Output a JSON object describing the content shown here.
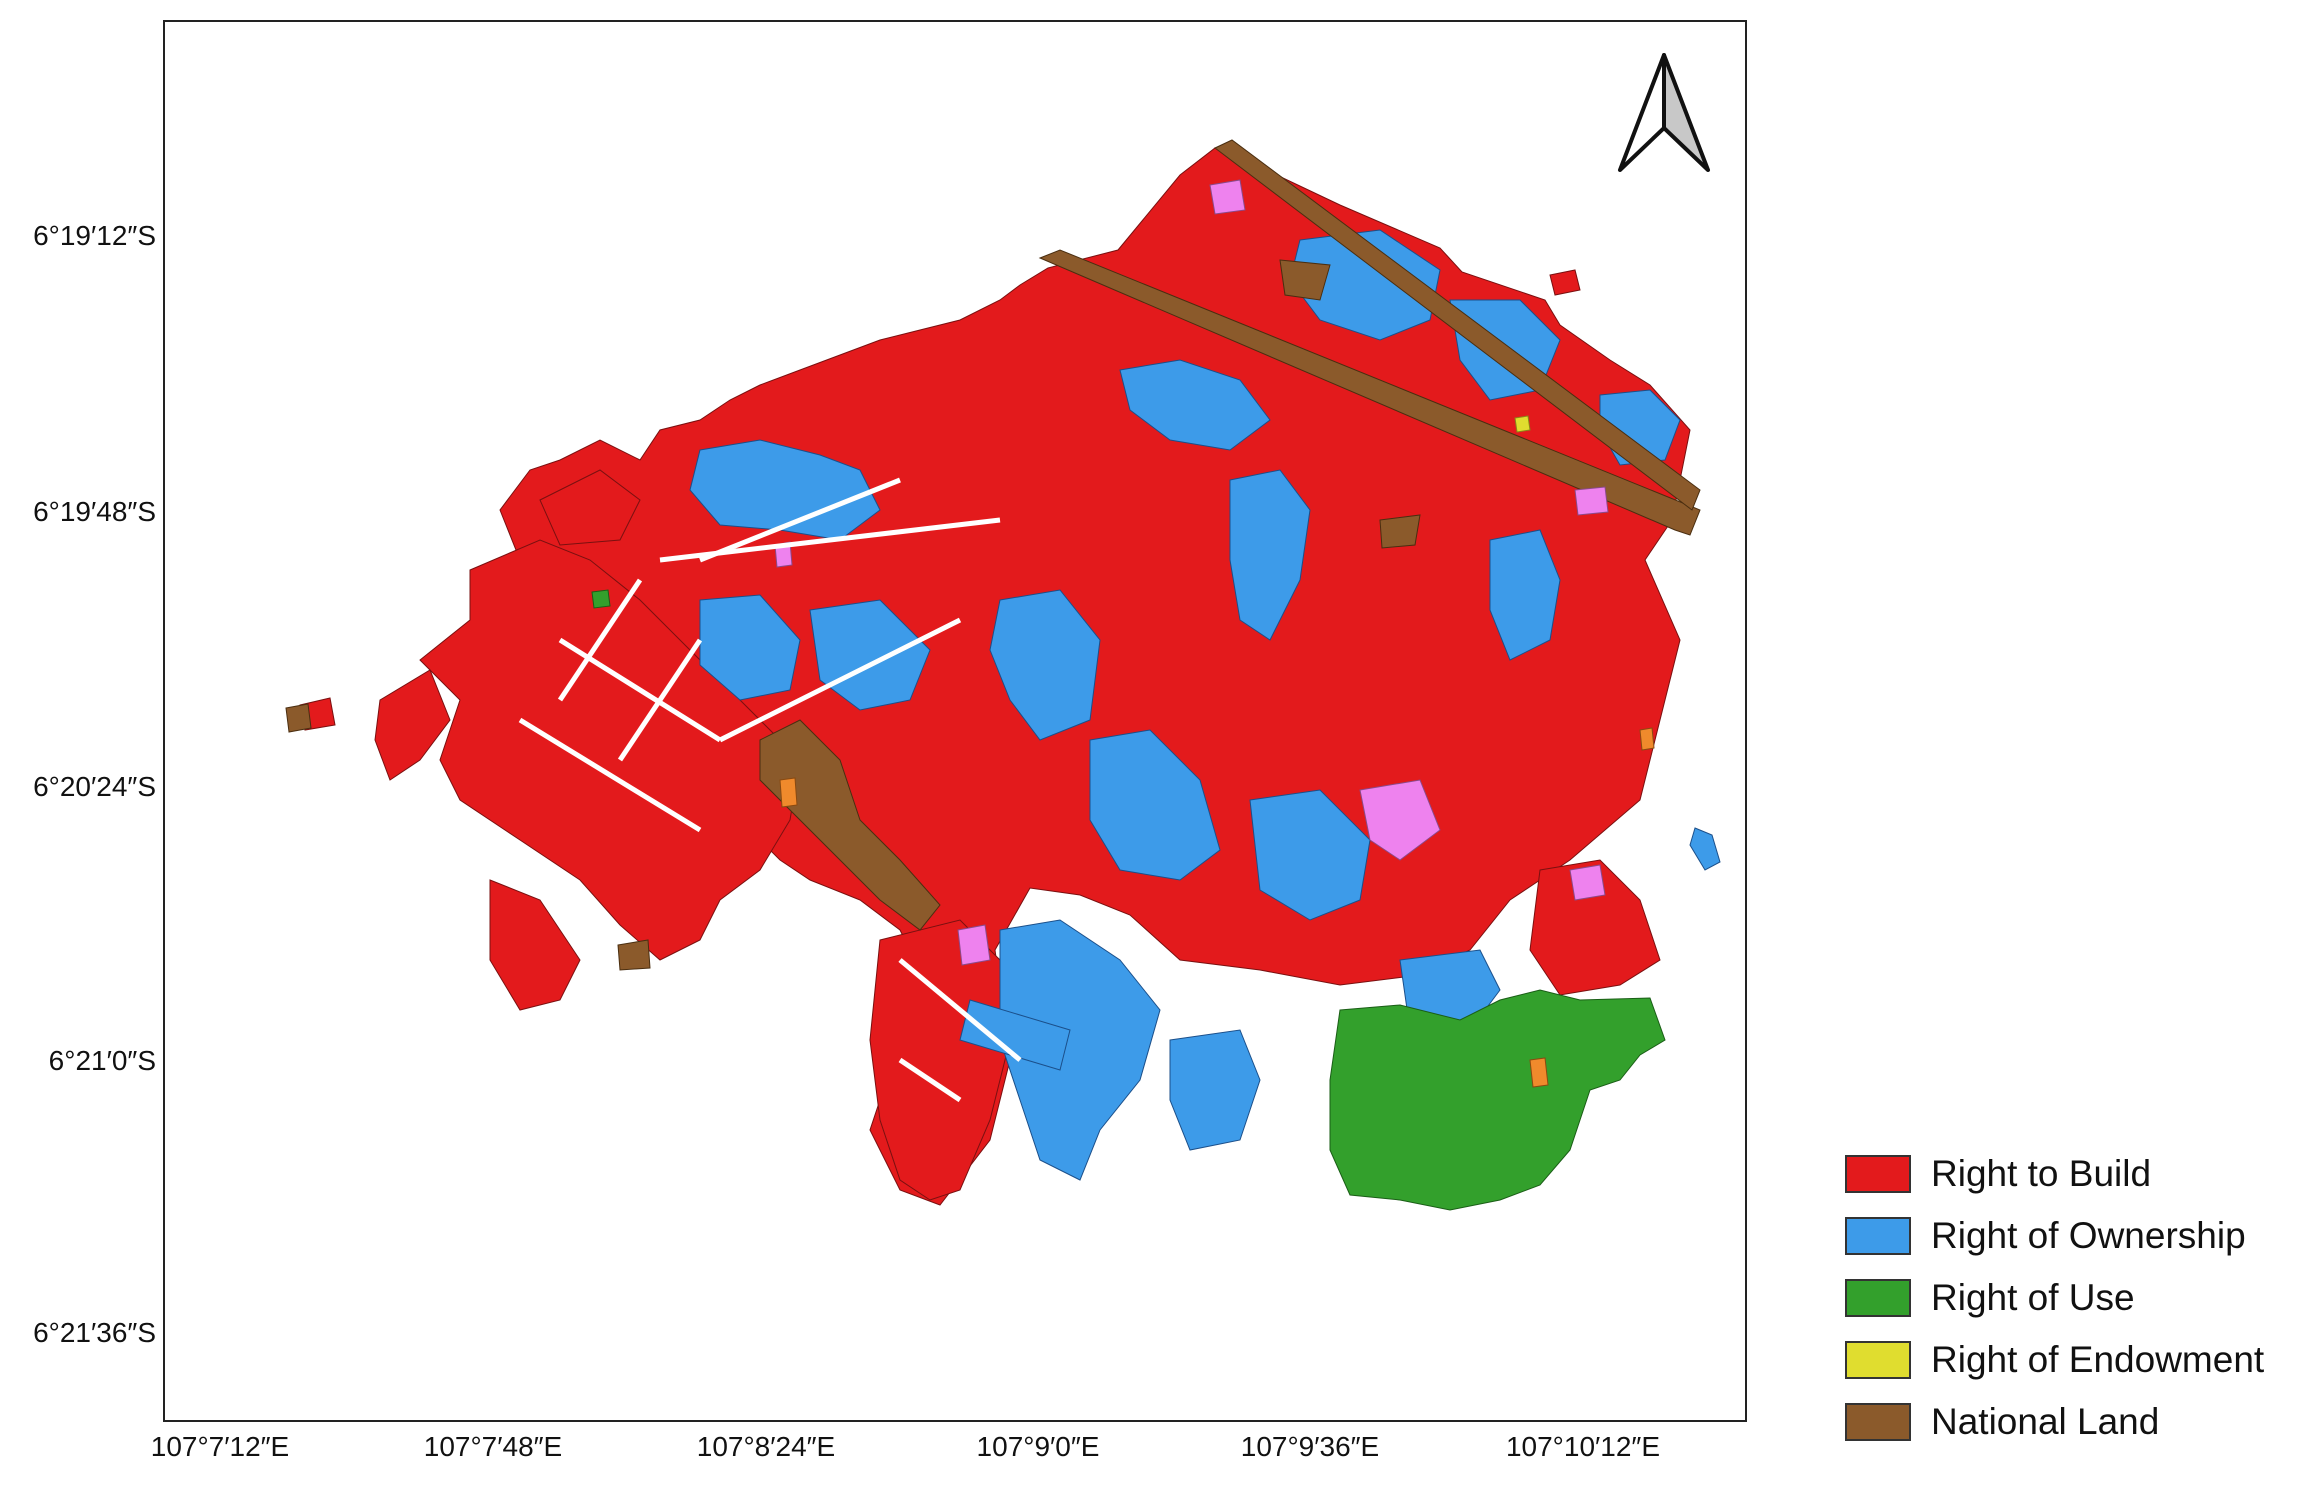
{
  "map": {
    "north_arrow_icon": "north-arrow-icon",
    "latitude_labels": [
      "6°19′12″S",
      "6°19′48″S",
      "6°20′24″S",
      "6°21′0″S",
      "6°21′36″S"
    ],
    "longitude_labels": [
      "107°7′12″E",
      "107°7′48″E",
      "107°8′24″E",
      "107°9′0″E",
      "107°9′36″E",
      "107°10′12″E"
    ],
    "legend": [
      {
        "label": "Right to Build",
        "color": "#e31a1c"
      },
      {
        "label": "Right of Ownership",
        "color": "#3d9be9"
      },
      {
        "label": "Right of Use",
        "color": "#33a02c"
      },
      {
        "label": "Right of Endowment",
        "color": "#e0dd2f"
      },
      {
        "label": "National Land",
        "color": "#8b5a2b"
      }
    ],
    "colors": {
      "build": "#e31a1c",
      "ownership": "#3d9be9",
      "use": "#33a02c",
      "endowment": "#e0dd2f",
      "national": "#8b5a2b",
      "other_pink": "#ee82ee",
      "other_orange": "#f08a2c"
    }
  }
}
